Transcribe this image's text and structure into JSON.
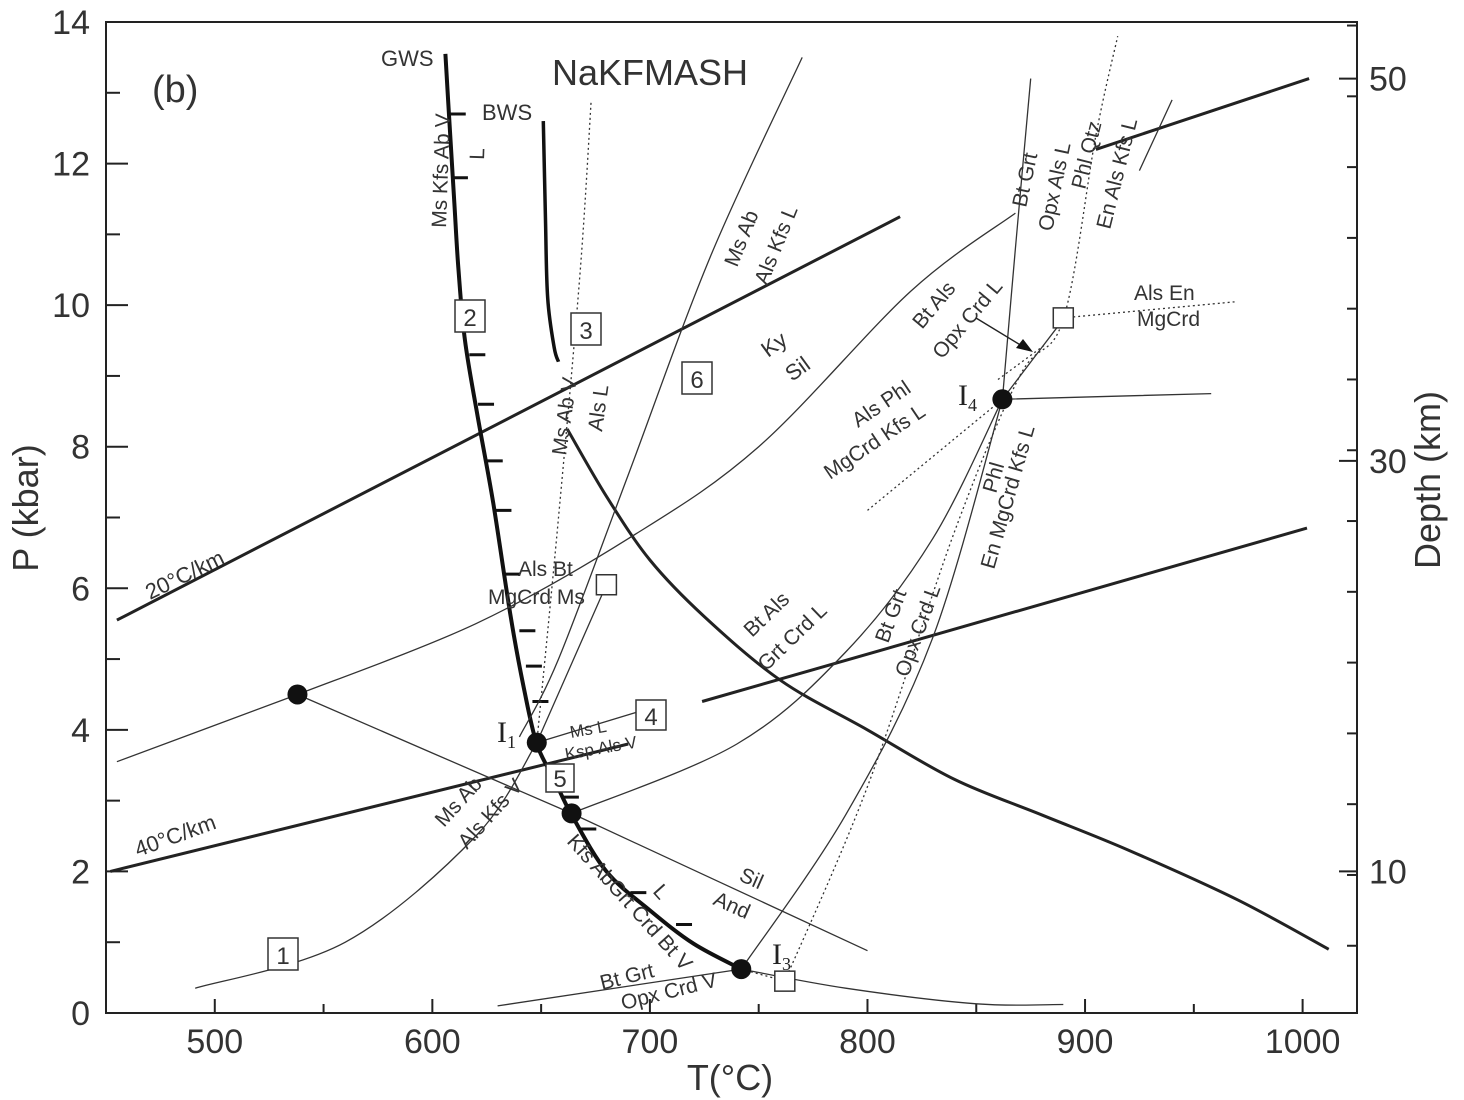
{
  "chart_data": {
    "type": "line",
    "panel_label": "(b)",
    "title": "NaKFMASH",
    "xlabel": "T(°C)",
    "ylabel": "P (kbar)",
    "ylabel_right": "Depth (km)",
    "xlim": [
      450,
      1025
    ],
    "ylim": [
      0,
      14
    ],
    "xticks": [
      500,
      600,
      700,
      800,
      900,
      1000
    ],
    "yticks": [
      0,
      2,
      4,
      6,
      8,
      10,
      12,
      14
    ],
    "right_ticks": [
      {
        "label": "10",
        "p": 2.0
      },
      {
        "label": "30",
        "p": 7.8
      },
      {
        "label": "50",
        "p": 13.2
      }
    ],
    "geotherms": [
      {
        "name": "20°C/km",
        "points": [
          [
            455,
            5.55
          ],
          [
            815,
            11.25
          ]
        ]
      },
      {
        "name": "20°C/km-cont",
        "points": [
          [
            905,
            12.2
          ],
          [
            1003,
            13.2
          ]
        ]
      },
      {
        "name": "40°C/km",
        "points": [
          [
            452,
            2.0
          ],
          [
            690,
            3.8
          ]
        ]
      },
      {
        "name": "40°C/km-cont",
        "points": [
          [
            724,
            4.4
          ],
          [
            1002,
            6.85
          ]
        ]
      }
    ],
    "solidi": [
      {
        "name": "GWS",
        "points": [
          [
            606,
            13.55
          ],
          [
            608,
            12.5
          ],
          [
            610,
            11.5
          ],
          [
            612,
            10.5
          ],
          [
            615,
            9.5
          ],
          [
            621,
            8.4
          ],
          [
            628,
            7.2
          ],
          [
            636,
            5.6
          ],
          [
            642,
            4.6
          ],
          [
            648,
            3.8
          ],
          [
            656,
            3.3
          ],
          [
            664,
            2.8
          ],
          [
            680,
            2.0
          ],
          [
            700,
            1.45
          ],
          [
            720,
            0.98
          ],
          [
            742,
            0.62
          ]
        ]
      },
      {
        "name": "BWS",
        "points": [
          [
            651,
            12.6
          ],
          [
            652,
            11.2
          ],
          [
            653,
            10.1
          ],
          [
            656,
            9.4
          ],
          [
            658,
            9.2
          ]
        ]
      },
      {
        "name": "Ms Ab V = Als L",
        "points": [
          [
            662,
            8.25
          ],
          [
            680,
            7.3
          ],
          [
            700,
            6.4
          ],
          [
            725,
            5.6
          ],
          [
            760,
            4.7
          ],
          [
            800,
            4.0
          ],
          [
            840,
            3.3
          ],
          [
            880,
            2.8
          ],
          [
            920,
            2.3
          ],
          [
            970,
            1.6
          ],
          [
            1012,
            0.9
          ]
        ]
      }
    ],
    "reactions": [
      {
        "name": "Ms Kfs Ab V / L"
      },
      {
        "name": "Ms Ab / Als Kfs L"
      },
      {
        "name": "Ky / Sil"
      },
      {
        "name": "Bt Als / Opx Crd L"
      },
      {
        "name": "Bt Grt / Opx Als L"
      },
      {
        "name": "Phl Qtz / En Als Kfs L"
      },
      {
        "name": "Als En / MgCrd"
      },
      {
        "name": "Als Phl / MgCrd Kfs L"
      },
      {
        "name": "Phl / En MgCrd Kfs L"
      },
      {
        "name": "Als Bt / MgCrd Ms"
      },
      {
        "name": "Bt Als / Grt Crd L"
      },
      {
        "name": "Bt Grt / Opx Crd L"
      },
      {
        "name": "Ms L / Ksp Als V"
      },
      {
        "name": "Ms Ab / Als Kfs V"
      },
      {
        "name": "Sil / And"
      },
      {
        "name": "Kfs AbGrt Crd Bt V / L"
      },
      {
        "name": "Bt Grt / Opx Crd V"
      }
    ],
    "invariant_points": [
      {
        "name": "I1",
        "x": 648,
        "y": 3.82
      },
      {
        "name": "I3",
        "x": 742,
        "y": 0.62
      },
      {
        "name": "I4",
        "x": 862,
        "y": 8.67
      },
      {
        "name": "",
        "x": 538,
        "y": 4.5
      },
      {
        "name": "",
        "x": 664,
        "y": 2.82
      }
    ],
    "boxed_labels": [
      "1",
      "2",
      "3",
      "4",
      "5",
      "6"
    ]
  },
  "text": {
    "panel": "(b)",
    "title": "NaKFMASH",
    "xlabel": "T(°C)",
    "ylabel": "P (kbar)",
    "ylabel_right": "Depth (km)",
    "gws": "GWS",
    "bws": "BWS",
    "g20": "20°C/km",
    "g40": "40°C/km",
    "ms_kfs_ab_v": "Ms Kfs Ab V",
    "l_a": "L",
    "ms_ab_v": "Ms Ab V",
    "als_l": "Als L",
    "ms_ab_1": "Ms Ab",
    "als_kfs_l": "Als Kfs L",
    "ky": "Ky",
    "sil": "Sil",
    "bt_als_1": "Bt Als",
    "opx_crd_l": "Opx Crd L",
    "bt_grt_1": "Bt Grt",
    "opx_als_l": "Opx Als L",
    "phl_qtz": "Phl Qtz",
    "en_als_kfs_l": "En Als Kfs L",
    "als_en": "Als En",
    "mgcrd": "MgCrd",
    "als_phl": "Als Phl",
    "mgcrd_kfs_l": "MgCrd Kfs L",
    "i4": "I",
    "i4sub": "4",
    "phl": "Phl",
    "en_mgcrd_kfs_l": "En MgCrd Kfs L",
    "als_bt": "Als Bt",
    "mgcrd_ms": "MgCrd Ms",
    "bt_als_2": "Bt Als",
    "grt_crd_l": "Grt Crd L",
    "bt_grt_2": "Bt Grt",
    "opx_crd_l_2": "Opx Crd L",
    "i1": "I",
    "i1sub": "1",
    "ms_l": "Ms L",
    "ksp_als_v": "Ksp Als V",
    "ms_ab_2": "Ms Ab",
    "als_kfs_v": "Als Kfs V",
    "sil2": "Sil",
    "and": "And",
    "kfs_abgrt": "Kfs AbGrt Crd Bt V",
    "l_b": "L",
    "i3": "I",
    "i3sub": "3",
    "bt_grt_3": "Bt Grt",
    "opx_crd_v": "Opx Crd V",
    "b1": "1",
    "b2": "2",
    "b3": "3",
    "b4": "4",
    "b5": "5",
    "b6": "6"
  }
}
